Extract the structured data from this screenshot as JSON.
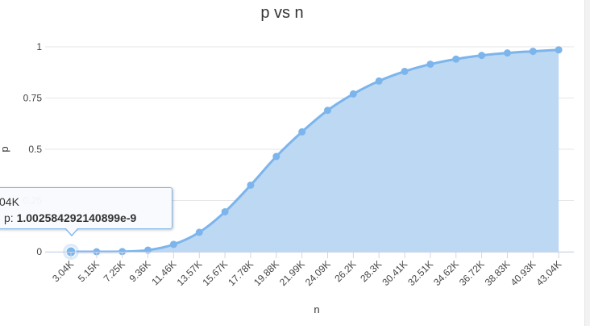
{
  "chart_data": {
    "type": "area",
    "title": "p vs n",
    "xlabel": "n",
    "ylabel": "p",
    "categories": [
      "3.04K",
      "5.15K",
      "7.25K",
      "9.36K",
      "11.46K",
      "13.57K",
      "15.67K",
      "17.78K",
      "19.88K",
      "21.99K",
      "24.09K",
      "26.2K",
      "28.3K",
      "30.41K",
      "32.51K",
      "34.62K",
      "36.72K",
      "38.83K",
      "40.93K",
      "43.04K"
    ],
    "values": [
      1e-09,
      3e-07,
      0.0008,
      0.008,
      0.036,
      0.095,
      0.195,
      0.325,
      0.465,
      0.585,
      0.69,
      0.77,
      0.833,
      0.88,
      0.915,
      0.94,
      0.958,
      0.97,
      0.978,
      0.985
    ],
    "ylim": [
      0,
      1
    ],
    "yticks": [
      "0",
      "0.25",
      "0.5",
      "0.75",
      "1"
    ],
    "grid": true,
    "legend": "none",
    "colors": {
      "series": "#7cb5ec",
      "fill": "#bcd8f3",
      "grid": "#e6e6e6"
    }
  },
  "tooltip": {
    "x_label": "04K",
    "series_label": "p:",
    "value": "1.002584292140899e-9"
  }
}
